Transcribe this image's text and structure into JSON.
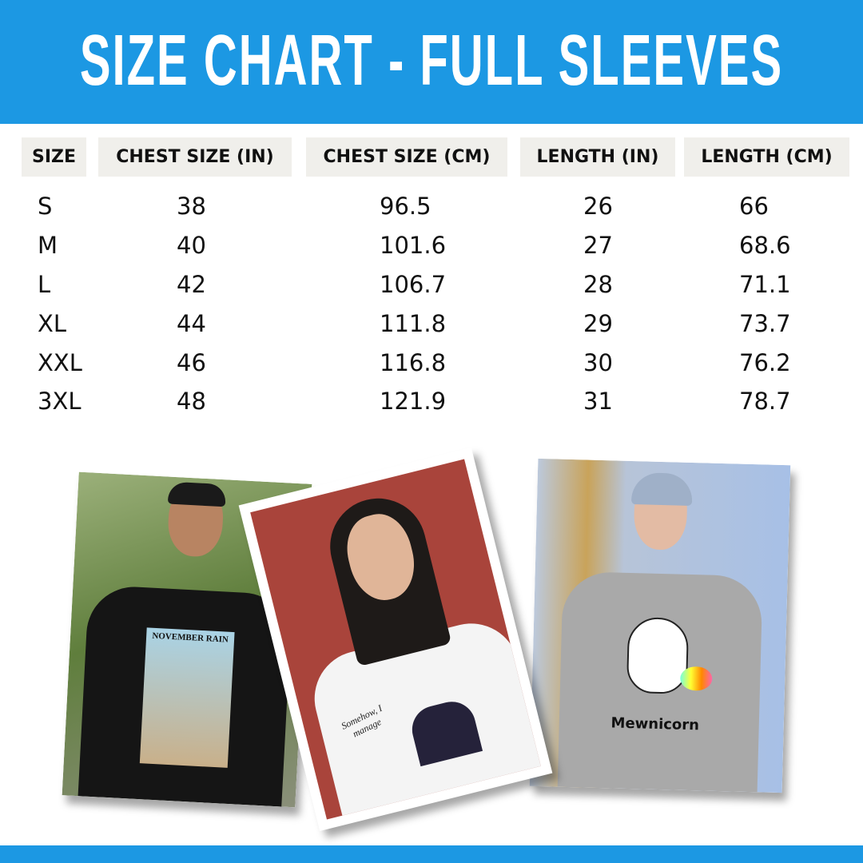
{
  "colors": {
    "brand": "#1c98e3",
    "header_cell_bg": "#f0efeb"
  },
  "title": "SIZE CHART - FULL SLEEVES",
  "table": {
    "headers": [
      "SIZE",
      "CHEST SIZE (IN)",
      "CHEST SIZE (CM)",
      "LENGTH (IN)",
      "LENGTH (CM)"
    ],
    "rows": [
      [
        "S",
        "38",
        "96.5",
        "26",
        "66"
      ],
      [
        "M",
        "40",
        "101.6",
        "27",
        "68.6"
      ],
      [
        "L",
        "42",
        "106.7",
        "28",
        "71.1"
      ],
      [
        "XL",
        "44",
        "111.8",
        "29",
        "73.7"
      ],
      [
        "XXL",
        "46",
        "116.8",
        "30",
        "76.2"
      ],
      [
        "3XL",
        "48",
        "121.9",
        "31",
        "78.7"
      ]
    ]
  },
  "photos": [
    {
      "shirt_color": "#151515",
      "print_text": "NOVEMBER RAIN"
    },
    {
      "shirt_color": "#f4f4f4",
      "print_text": "Somehow, I manage"
    },
    {
      "shirt_color": "#a9a9a9",
      "print_text": "Mewnicorn"
    }
  ]
}
